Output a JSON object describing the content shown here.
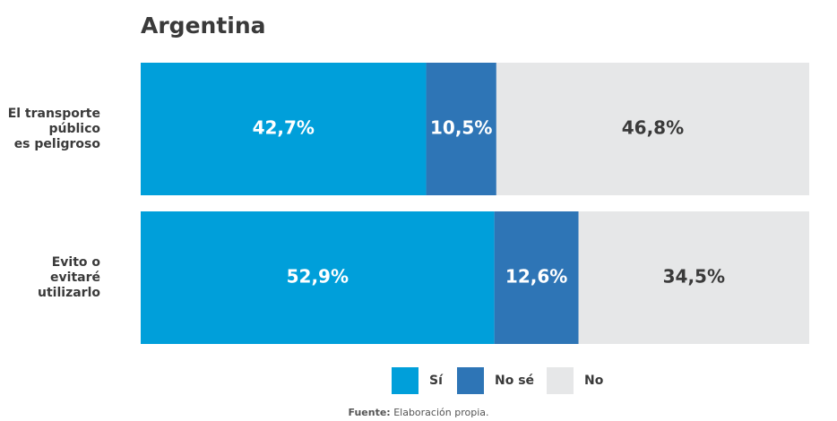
{
  "chart_data": {
    "type": "stacked_bar_horizontal",
    "title": "Argentina",
    "categories": [
      "El transporte\npúblico\nes peligroso",
      "Evito o\nevitaré\nutilizarlo"
    ],
    "series": [
      {
        "name": "Sí",
        "color": "#009fda",
        "label_color": "#ffffff",
        "values": [
          42.7,
          52.9
        ],
        "value_labels": [
          "42,7%",
          "52,9%"
        ]
      },
      {
        "name": "No sé",
        "color": "#2e75b6",
        "label_color": "#ffffff",
        "values": [
          10.5,
          12.6
        ],
        "value_labels": [
          "10,5%",
          "12,6%"
        ]
      },
      {
        "name": "No",
        "color": "#e6e7e8",
        "label_color": "#3a3a3a",
        "values": [
          46.8,
          34.5
        ],
        "value_labels": [
          "46,8%",
          "34,5%"
        ]
      }
    ],
    "xlim": [
      0,
      100
    ],
    "source_label": "Fuente:",
    "source": "Elaboración propia."
  }
}
